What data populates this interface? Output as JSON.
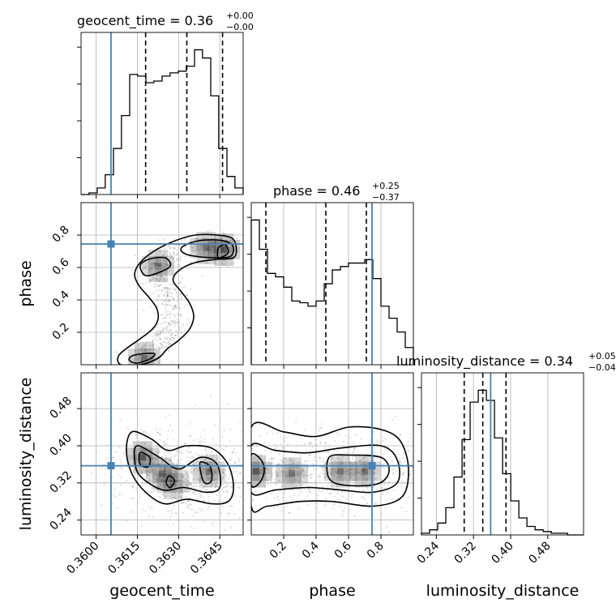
{
  "chart_data": {
    "type": "corner",
    "parameters": [
      "geocent_time",
      "phase",
      "luminosity_distance"
    ],
    "truths": {
      "geocent_time": 0.36054,
      "phase": 0.745,
      "luminosity_distance": 0.357
    },
    "titles": [
      {
        "param": "geocent_time",
        "text": "geocent_time = 0.36",
        "sup": "+0.00",
        "sub": "−0.00"
      },
      {
        "param": "phase",
        "text": "phase = 0.46",
        "sup": "+0.25",
        "sub": "−0.37"
      },
      {
        "param": "luminosity_distance",
        "text": "luminosity_distance = 0.34",
        "sup": "+0.05",
        "sub": "−0.04"
      }
    ],
    "axes": {
      "geocent_time": {
        "label": "geocent_time",
        "range": [
          0.35945,
          0.36535
        ],
        "ticks": [
          0.36,
          0.3615,
          0.363,
          0.3645
        ],
        "tick_labels": [
          "0.3600",
          "0.3615",
          "0.3630",
          "0.3645"
        ]
      },
      "phase": {
        "label": "phase",
        "range": [
          0.0,
          1.0
        ],
        "ticks": [
          0.2,
          0.4,
          0.6,
          0.8
        ],
        "tick_labels": [
          "0.2",
          "0.4",
          "0.6",
          "0.8"
        ]
      },
      "luminosity_distance": {
        "label": "luminosity_distance",
        "range": [
          0.208,
          0.557
        ],
        "ticks": [
          0.24,
          0.32,
          0.4,
          0.48
        ],
        "tick_labels": [
          "0.24",
          "0.32",
          "0.40",
          "0.48"
        ]
      }
    },
    "histograms": {
      "geocent_time": {
        "bin_edges": [
          0.35945,
          0.35974,
          0.36004,
          0.36033,
          0.36063,
          0.36092,
          0.36122,
          0.36151,
          0.36181,
          0.3621,
          0.3624,
          0.36269,
          0.36299,
          0.36328,
          0.36358,
          0.36387,
          0.36417,
          0.36446,
          0.36476,
          0.36505,
          0.36535
        ],
        "counts": [
          0,
          1,
          4,
          12,
          28,
          48,
          73,
          72,
          68,
          69,
          72,
          74,
          75,
          78,
          88,
          83,
          60,
          28,
          11,
          4
        ],
        "quantiles": [
          0.3618,
          0.3633,
          0.3646
        ]
      },
      "phase": {
        "bin_edges": [
          0.0,
          0.05,
          0.1,
          0.15,
          0.2,
          0.25,
          0.3,
          0.35,
          0.4,
          0.45,
          0.5,
          0.55,
          0.6,
          0.65,
          0.7,
          0.75,
          0.8,
          0.85,
          0.9,
          0.95,
          1.0
        ],
        "counts": [
          84,
          67,
          53,
          51,
          45,
          37,
          36,
          34,
          37,
          47,
          55,
          57,
          59,
          59,
          61,
          50,
          34,
          27,
          19,
          10
        ],
        "quantiles": [
          0.09,
          0.46,
          0.71
        ]
      },
      "luminosity_distance": {
        "bin_edges": [
          0.208,
          0.2255,
          0.243,
          0.2604,
          0.2779,
          0.2954,
          0.3128,
          0.3303,
          0.3478,
          0.3652,
          0.3827,
          0.4002,
          0.4177,
          0.4351,
          0.4526,
          0.4701,
          0.4875,
          0.505,
          0.5225,
          0.5399,
          0.557
        ],
        "counts": [
          1,
          3,
          7,
          16,
          34,
          56,
          78,
          85,
          79,
          57,
          36,
          20,
          10,
          5,
          3,
          2,
          1,
          1,
          0,
          0
        ],
        "quantiles": [
          0.3,
          0.34,
          0.39
        ]
      }
    },
    "density_2d": [
      {
        "x": "geocent_time",
        "y": "phase",
        "ridge": [
          [
            0.36155,
            0.03
          ],
          [
            0.36175,
            0.06
          ],
          [
            0.36205,
            0.1
          ],
          [
            0.3624,
            0.15
          ],
          [
            0.3627,
            0.22
          ],
          [
            0.3629,
            0.3
          ],
          [
            0.36285,
            0.38
          ],
          [
            0.3626,
            0.45
          ],
          [
            0.36225,
            0.52
          ],
          [
            0.36215,
            0.58
          ],
          [
            0.3624,
            0.64
          ],
          [
            0.363,
            0.69
          ],
          [
            0.3637,
            0.72
          ],
          [
            0.3643,
            0.73
          ],
          [
            0.3647,
            0.72
          ]
        ],
        "peaks": [
          [
            0.36465,
            0.71
          ],
          [
            0.364,
            0.72
          ],
          [
            0.36225,
            0.61
          ],
          [
            0.36175,
            0.04
          ]
        ],
        "contours": [
          [
            [
              0.3616,
              0.0
            ],
            [
              0.36225,
              0.04
            ],
            [
              0.3626,
              0.1
            ],
            [
              0.363,
              0.15
            ],
            [
              0.3634,
              0.22
            ],
            [
              0.36355,
              0.3
            ],
            [
              0.3634,
              0.38
            ],
            [
              0.3631,
              0.45
            ],
            [
              0.3628,
              0.52
            ],
            [
              0.363,
              0.58
            ],
            [
              0.3636,
              0.63
            ],
            [
              0.3644,
              0.65
            ],
            [
              0.365,
              0.66
            ],
            [
              0.3651,
              0.72
            ],
            [
              0.36495,
              0.78
            ],
            [
              0.3644,
              0.8
            ],
            [
              0.3636,
              0.8
            ],
            [
              0.3628,
              0.76
            ],
            [
              0.3621,
              0.7
            ],
            [
              0.3616,
              0.63
            ],
            [
              0.3614,
              0.56
            ],
            [
              0.36155,
              0.49
            ],
            [
              0.3619,
              0.42
            ],
            [
              0.3622,
              0.35
            ],
            [
              0.36225,
              0.28
            ],
            [
              0.36205,
              0.22
            ],
            [
              0.3616,
              0.16
            ],
            [
              0.3611,
              0.1
            ],
            [
              0.3608,
              0.05
            ],
            [
              0.3609,
              0.0
            ]
          ],
          [
            [
              0.3615,
              0.01
            ],
            [
              0.362,
              0.04
            ],
            [
              0.3621,
              0.07
            ],
            [
              0.3614,
              0.06
            ],
            [
              0.3612,
              0.03
            ]
          ],
          [
            [
              0.3618,
              0.55
            ],
            [
              0.3623,
              0.57
            ],
            [
              0.3627,
              0.61
            ],
            [
              0.3625,
              0.66
            ],
            [
              0.3619,
              0.65
            ],
            [
              0.3616,
              0.61
            ]
          ],
          [
            [
              0.3633,
              0.68
            ],
            [
              0.3642,
              0.66
            ],
            [
              0.3649,
              0.67
            ],
            [
              0.36495,
              0.74
            ],
            [
              0.3644,
              0.77
            ],
            [
              0.3636,
              0.76
            ],
            [
              0.3631,
              0.72
            ]
          ],
          [
            [
              0.36445,
              0.66
            ],
            [
              0.3648,
              0.69
            ],
            [
              0.3647,
              0.74
            ],
            [
              0.36445,
              0.72
            ]
          ]
        ],
        "scatter_spread": [
          0.00032,
          0.05
        ]
      },
      {
        "x": "geocent_time",
        "y": "luminosity_distance",
        "ridge": [
          [
            0.3617,
            0.39
          ],
          [
            0.3623,
            0.35
          ],
          [
            0.3629,
            0.33
          ],
          [
            0.3636,
            0.345
          ],
          [
            0.3641,
            0.34
          ],
          [
            0.3645,
            0.3
          ]
        ],
        "peaks": [
          [
            0.3617,
            0.375
          ],
          [
            0.3624,
            0.34
          ],
          [
            0.3628,
            0.32
          ],
          [
            0.3641,
            0.345
          ]
        ],
        "contours": [
          [
            [
              0.3613,
              0.43
            ],
            [
              0.362,
              0.415
            ],
            [
              0.3626,
              0.39
            ],
            [
              0.3633,
              0.4
            ],
            [
              0.3642,
              0.395
            ],
            [
              0.3648,
              0.36
            ],
            [
              0.365,
              0.31
            ],
            [
              0.3648,
              0.28
            ],
            [
              0.3642,
              0.275
            ],
            [
              0.3633,
              0.285
            ],
            [
              0.3625,
              0.275
            ],
            [
              0.3618,
              0.3
            ],
            [
              0.3613,
              0.34
            ],
            [
              0.3611,
              0.39
            ]
          ],
          [
            [
              0.3615,
              0.4
            ],
            [
              0.3623,
              0.375
            ],
            [
              0.363,
              0.35
            ],
            [
              0.3638,
              0.375
            ],
            [
              0.3644,
              0.36
            ],
            [
              0.3645,
              0.31
            ],
            [
              0.364,
              0.3
            ],
            [
              0.3632,
              0.31
            ],
            [
              0.3624,
              0.305
            ],
            [
              0.3616,
              0.335
            ],
            [
              0.3614,
              0.37
            ]
          ],
          [
            [
              0.3638,
              0.365
            ],
            [
              0.36415,
              0.355
            ],
            [
              0.3642,
              0.325
            ],
            [
              0.36395,
              0.32
            ],
            [
              0.3638,
              0.345
            ]
          ],
          [
            [
              0.3616,
              0.385
            ],
            [
              0.36195,
              0.375
            ],
            [
              0.3619,
              0.355
            ],
            [
              0.3616,
              0.36
            ]
          ],
          [
            [
              0.36265,
              0.335
            ],
            [
              0.36285,
              0.325
            ],
            [
              0.3627,
              0.31
            ],
            [
              0.36255,
              0.32
            ]
          ]
        ],
        "scatter_spread": [
          0.001,
          0.045
        ]
      },
      {
        "x": "phase",
        "y": "luminosity_distance",
        "ridge": [
          [
            0.01,
            0.345
          ],
          [
            0.2,
            0.35
          ],
          [
            0.4,
            0.348
          ],
          [
            0.6,
            0.345
          ],
          [
            0.75,
            0.35
          ],
          [
            0.9,
            0.35
          ]
        ],
        "peaks": [
          [
            0.03,
            0.345
          ],
          [
            0.25,
            0.34
          ],
          [
            0.55,
            0.345
          ],
          [
            0.7,
            0.345
          ]
        ],
        "contours": [
          [
            [
              0.0,
              0.44
            ],
            [
              0.2,
              0.43
            ],
            [
              0.4,
              0.42
            ],
            [
              0.6,
              0.44
            ],
            [
              0.8,
              0.435
            ],
            [
              0.92,
              0.41
            ],
            [
              0.97,
              0.35
            ],
            [
              0.93,
              0.29
            ],
            [
              0.75,
              0.27
            ],
            [
              0.5,
              0.28
            ],
            [
              0.3,
              0.28
            ],
            [
              0.1,
              0.27
            ],
            [
              0.0,
              0.27
            ]
          ],
          [
            [
              0.0,
              0.4
            ],
            [
              0.15,
              0.39
            ],
            [
              0.35,
              0.385
            ],
            [
              0.55,
              0.395
            ],
            [
              0.8,
              0.4
            ],
            [
              0.9,
              0.37
            ],
            [
              0.9,
              0.32
            ],
            [
              0.75,
              0.3
            ],
            [
              0.55,
              0.305
            ],
            [
              0.35,
              0.31
            ],
            [
              0.15,
              0.305
            ],
            [
              0.0,
              0.3
            ]
          ],
          [
            [
              0.48,
              0.375
            ],
            [
              0.6,
              0.38
            ],
            [
              0.8,
              0.375
            ],
            [
              0.85,
              0.345
            ],
            [
              0.78,
              0.318
            ],
            [
              0.58,
              0.315
            ],
            [
              0.48,
              0.33
            ]
          ],
          [
            [
              0.0,
              0.38
            ],
            [
              0.06,
              0.37
            ],
            [
              0.08,
              0.345
            ],
            [
              0.05,
              0.32
            ],
            [
              0.0,
              0.315
            ]
          ]
        ],
        "scatter_spread": [
          0.28,
          0.045
        ]
      }
    ]
  }
}
